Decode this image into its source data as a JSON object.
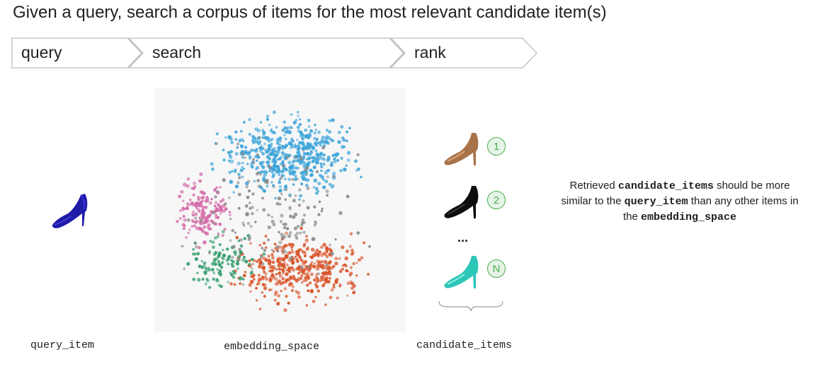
{
  "title": "Given a query, search a corpus of items for the most relevant candidate item(s)",
  "flow": {
    "steps": [
      "query",
      "search",
      "rank"
    ]
  },
  "labels": {
    "query_item": "query_item",
    "embedding_space": "embedding_space",
    "candidate_items": "candidate_items"
  },
  "ranks": [
    "1",
    "2",
    "N"
  ],
  "ellipsis": "...",
  "caption": {
    "p1": "Retrieved ",
    "t1": "candidate_items",
    "p2": " should be more similar to the ",
    "t2": "query_item",
    "p3": " than any other items in the ",
    "t3": "embedding_space"
  },
  "colors": {
    "blue": "#3aa3d8",
    "orange": "#d9542a",
    "pink": "#d46aa8",
    "green": "#2e9b68",
    "gray": "#8a8a8a",
    "badge_green": "#4caf50"
  }
}
